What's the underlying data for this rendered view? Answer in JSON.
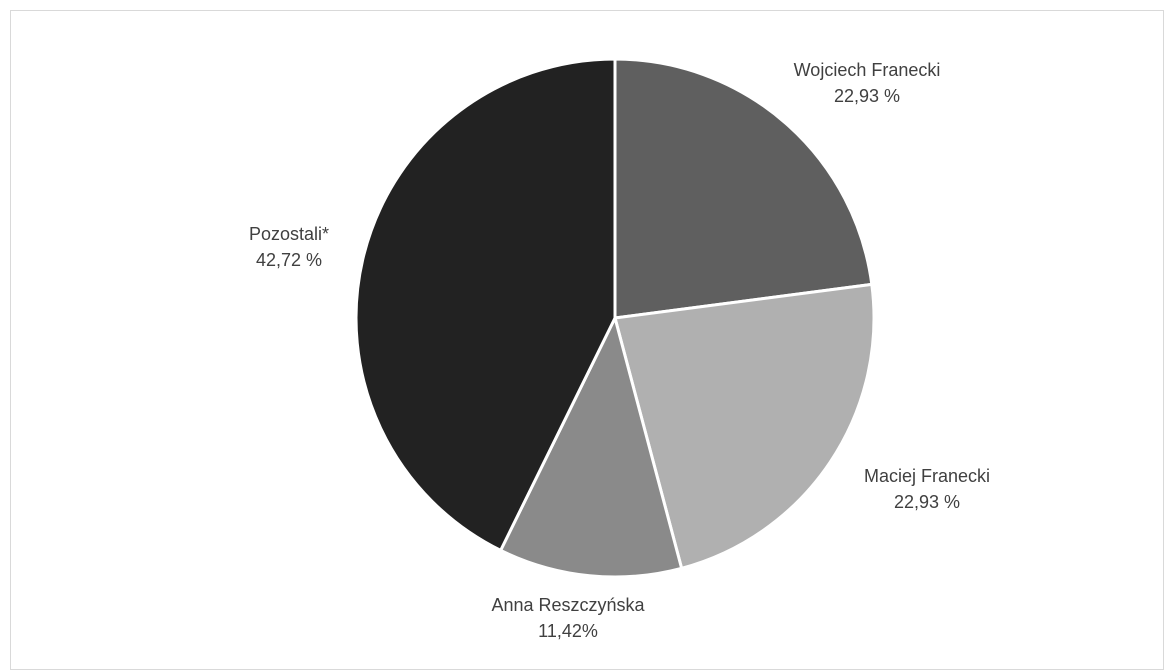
{
  "chart_data": {
    "type": "pie",
    "title": "",
    "slices": [
      {
        "label": "Wojciech Franecki",
        "value_label": "22,93 %",
        "value": 22.93,
        "color": "#5f5f5f"
      },
      {
        "label": "Maciej Franecki",
        "value_label": "22,93 %",
        "value": 22.93,
        "color": "#b0b0b0"
      },
      {
        "label": "Anna Reszczyńska",
        "value_label": "11,42%",
        "value": 11.42,
        "color": "#8a8a8a"
      },
      {
        "label": "Pozostali*",
        "value_label": "42,72 %",
        "value": 42.72,
        "color": "#222222"
      }
    ]
  }
}
